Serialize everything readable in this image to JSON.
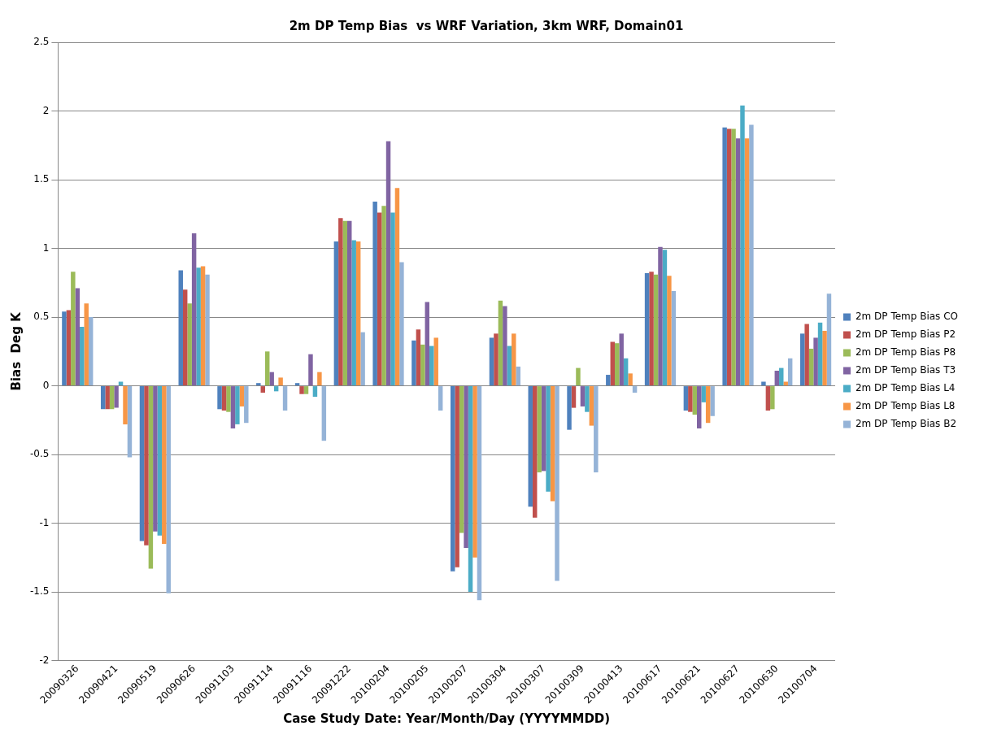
{
  "chart_data": {
    "type": "bar",
    "title": "2m DP Temp Bias  vs WRF Variation, 3km WRF, Domain01",
    "xlabel": "Case Study Date: Year/Month/Day (YYYYMMDD)",
    "ylabel": "Bias  Deg K",
    "categories": [
      "20090326",
      "20090421",
      "20090519",
      "20090626",
      "20091103",
      "20091114",
      "20091116",
      "20091222",
      "20100204",
      "20100205",
      "20100207",
      "20100304",
      "20100307",
      "20100309",
      "20100413",
      "20100617",
      "20100621",
      "20100627",
      "20100630",
      "20100704"
    ],
    "series": [
      {
        "name": "2m DP Temp Bias CO",
        "color": "#4f81bd",
        "values": [
          0.54,
          -0.17,
          -1.13,
          0.84,
          -0.17,
          0.02,
          0.02,
          1.05,
          1.34,
          0.33,
          -1.35,
          0.35,
          -0.88,
          -0.32,
          0.08,
          0.82,
          -0.18,
          1.88,
          0.03,
          0.38
        ]
      },
      {
        "name": "2m DP Temp Bias P2",
        "color": "#c0504d",
        "values": [
          0.55,
          -0.17,
          -1.16,
          0.7,
          -0.18,
          -0.05,
          -0.06,
          1.22,
          1.26,
          0.41,
          -1.32,
          0.38,
          -0.96,
          -0.16,
          0.32,
          0.83,
          -0.19,
          1.87,
          -0.18,
          0.45
        ]
      },
      {
        "name": "2m DP Temp Bias P8",
        "color": "#9bbb59",
        "values": [
          0.83,
          -0.17,
          -1.33,
          0.6,
          -0.19,
          0.25,
          -0.06,
          1.2,
          1.31,
          0.3,
          -1.07,
          0.62,
          -0.63,
          0.13,
          0.31,
          0.81,
          -0.21,
          1.87,
          -0.17,
          0.27
        ]
      },
      {
        "name": "2m DP Temp Bias T3",
        "color": "#8064a2",
        "values": [
          0.71,
          -0.16,
          -1.06,
          1.11,
          -0.31,
          0.1,
          0.23,
          1.2,
          1.78,
          0.61,
          -1.18,
          0.58,
          -0.62,
          -0.15,
          0.38,
          1.01,
          -0.31,
          1.8,
          0.11,
          0.35
        ]
      },
      {
        "name": "2m DP Temp Bias L4",
        "color": "#4bacc6",
        "values": [
          0.43,
          0.03,
          -1.09,
          0.86,
          -0.28,
          -0.04,
          -0.08,
          1.06,
          1.26,
          0.29,
          -1.5,
          0.29,
          -0.77,
          -0.19,
          0.2,
          0.99,
          -0.12,
          2.04,
          0.13,
          0.46
        ]
      },
      {
        "name": "2m DP Temp Bias L8",
        "color": "#f79646",
        "values": [
          0.6,
          -0.28,
          -1.15,
          0.87,
          -0.15,
          0.06,
          0.1,
          1.05,
          1.44,
          0.35,
          -1.25,
          0.38,
          -0.84,
          -0.29,
          0.09,
          0.8,
          -0.27,
          1.8,
          0.03,
          0.4
        ]
      },
      {
        "name": "2m DP Temp Bias B2",
        "color": "#95b3d7",
        "values": [
          0.5,
          -0.52,
          -1.51,
          0.81,
          -0.27,
          -0.18,
          -0.4,
          0.39,
          0.9,
          -0.18,
          -1.56,
          0.14,
          -1.42,
          -0.63,
          -0.05,
          0.69,
          -0.22,
          1.9,
          0.2,
          0.67
        ]
      }
    ],
    "ylim": [
      -2,
      2.5
    ],
    "yticks": [
      -2,
      -1.5,
      -1,
      -0.5,
      0,
      0.5,
      1,
      1.5,
      2,
      2.5
    ],
    "grid": "y",
    "legend": "right"
  }
}
